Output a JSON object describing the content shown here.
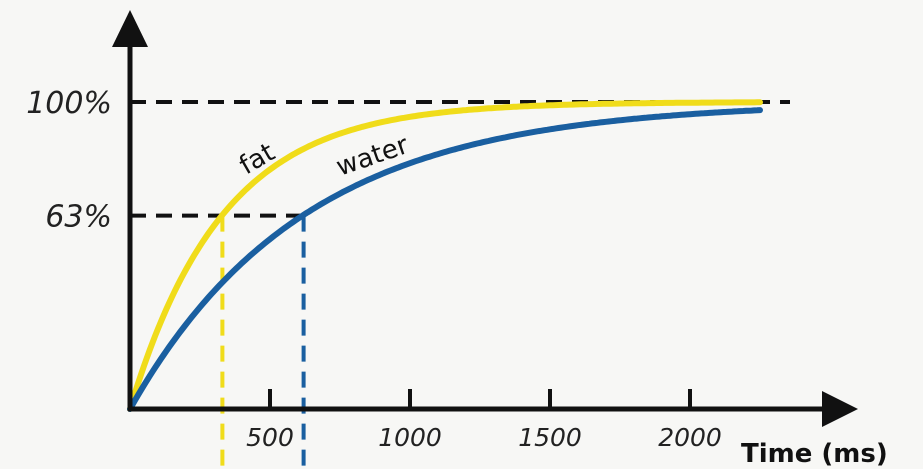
{
  "chart_data": {
    "type": "line",
    "xlabel": "Time (ms)",
    "x_ticks": [
      500,
      1000,
      1500,
      2000
    ],
    "y_ticks": [
      {
        "value": 63,
        "label": "63%"
      },
      {
        "value": 100,
        "label": "100%"
      }
    ],
    "xlim": [
      0,
      2400
    ],
    "ylim": [
      0,
      133
    ],
    "series": [
      {
        "name": "fat",
        "color": "#f0dc1a",
        "time_constant_ms": 330
      },
      {
        "name": "water",
        "color": "#1a5fa0",
        "time_constant_ms": 620
      }
    ],
    "grid": false,
    "legend": "inline labels on curves"
  }
}
